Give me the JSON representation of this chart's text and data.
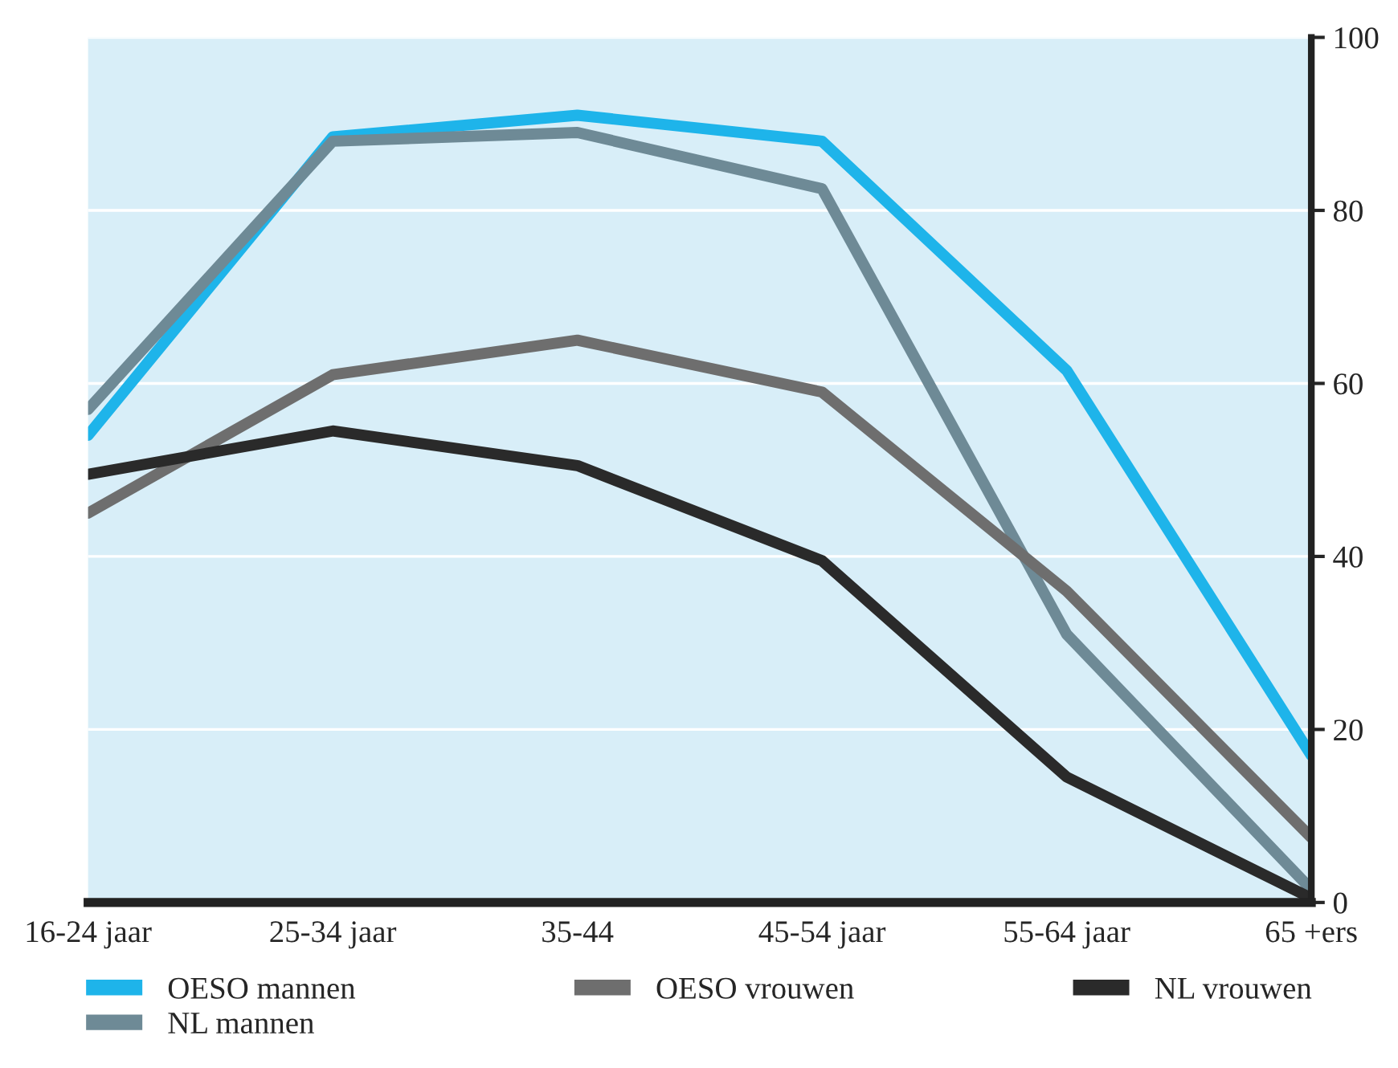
{
  "chart_data": {
    "type": "line",
    "categories": [
      "16-24 jaar",
      "25-34 jaar",
      "35-44",
      "45-54 jaar",
      "55-64 jaar",
      "65 +ers"
    ],
    "series": [
      {
        "name": "OESO mannen",
        "color": "#1eb4ea",
        "values": [
          54,
          88.5,
          91,
          88,
          61.5,
          17
        ]
      },
      {
        "name": "NL mannen",
        "color": "#6e8a96",
        "values": [
          57,
          88,
          89,
          82.5,
          31,
          1.5
        ]
      },
      {
        "name": "OESO vrouwen",
        "color": "#6e6e6e",
        "values": [
          45,
          61,
          65,
          59,
          36,
          7.5
        ]
      },
      {
        "name": "NL vrouwen",
        "color": "#2a2a2a",
        "values": [
          49.5,
          54.5,
          50.5,
          39.5,
          14.5,
          0.5
        ]
      }
    ],
    "ylim": [
      0,
      100
    ],
    "yticks": [
      0,
      20,
      40,
      60,
      80,
      100
    ],
    "grid": "y",
    "legend": "bottom",
    "marker": "none",
    "line_style": "solid"
  }
}
